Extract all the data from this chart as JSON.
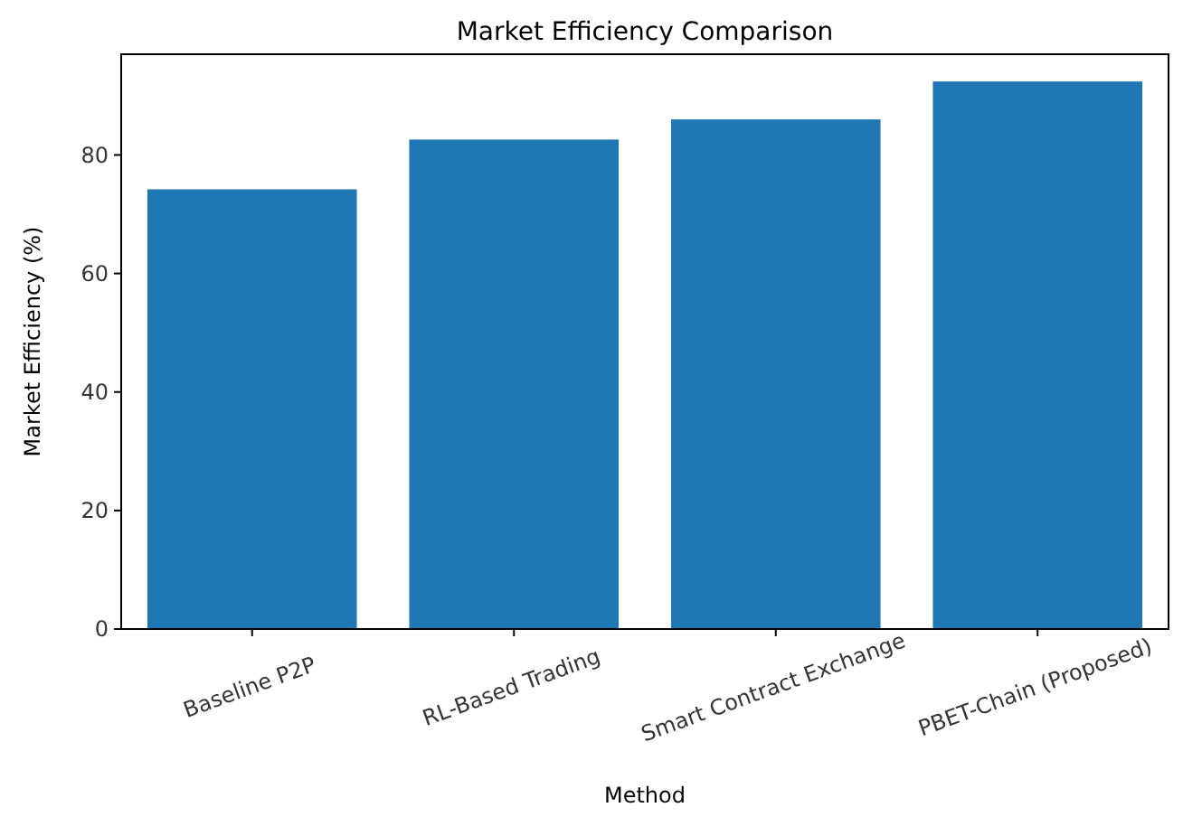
{
  "chart_data": {
    "type": "bar",
    "title": "Market Efficiency Comparison",
    "xlabel": "Method",
    "ylabel": "Market Efficiency (%)",
    "categories": [
      "Baseline P2P",
      "RL-Based Trading",
      "Smart Contract Exchange",
      "PBET-Chain (Proposed)"
    ],
    "values": [
      74.2,
      82.6,
      86.0,
      92.4
    ],
    "color": "#1f77b4",
    "ylim": [
      0,
      97.0
    ],
    "yticks": [
      0,
      20,
      40,
      60,
      80
    ],
    "grid": false
  }
}
